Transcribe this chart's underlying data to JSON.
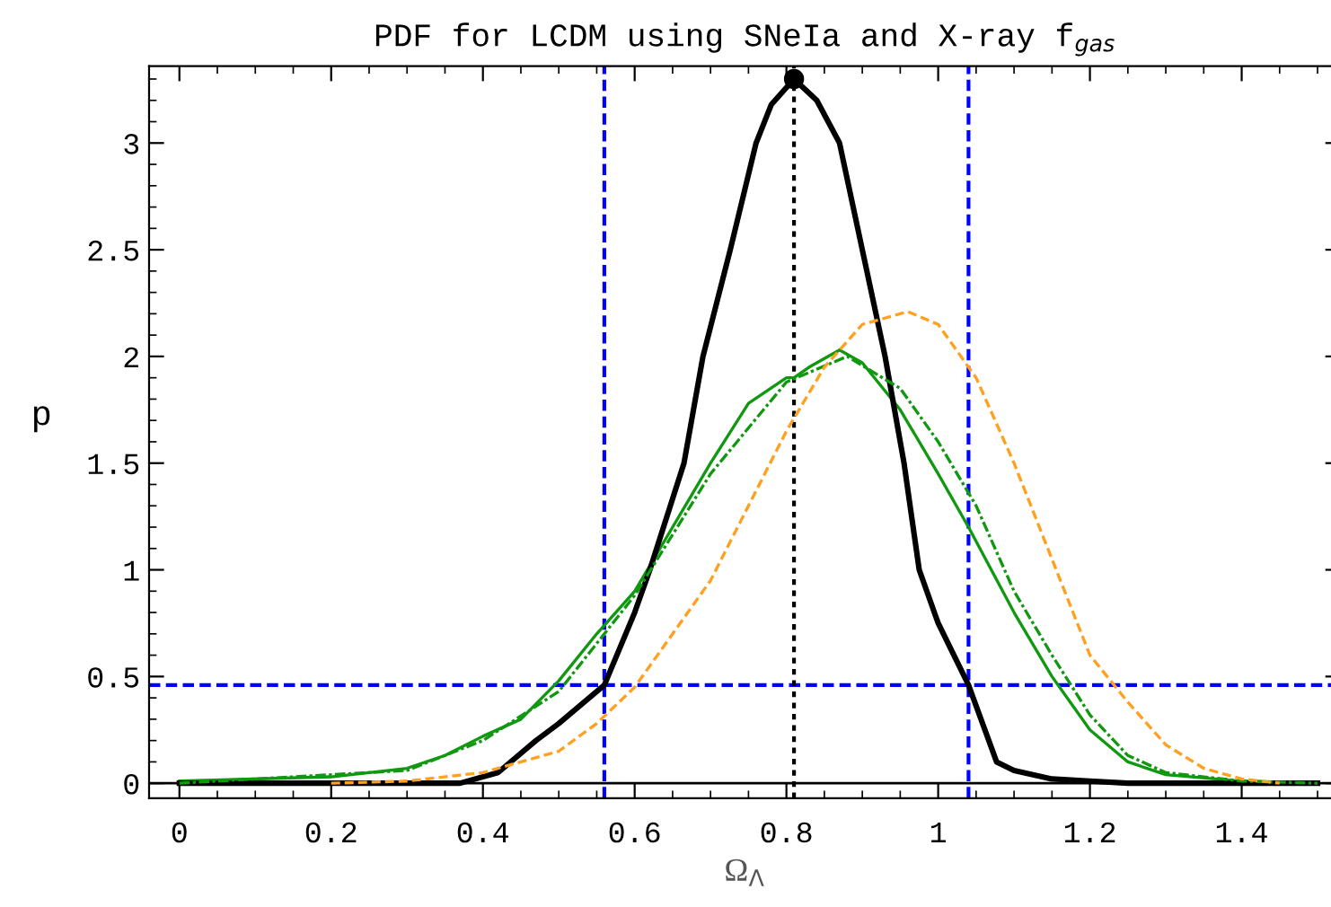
{
  "chart_data": {
    "type": "line",
    "title": "PDF for LCDM using SNeIa and X-ray f$_{gas}$",
    "xlabel": "Ω$_{Λ}$",
    "ylabel": "p",
    "xlim": [
      -0.04,
      1.53
    ],
    "ylim": [
      -0.07,
      3.36
    ],
    "xticks": [
      0,
      0.2,
      0.4,
      0.6,
      0.8,
      1,
      1.2,
      1.4
    ],
    "yticks": [
      0,
      0.5,
      1,
      1.5,
      2,
      2.5,
      3
    ],
    "grid": false,
    "legend": false,
    "series": [
      {
        "color": "#109910",
        "line_style": "solid",
        "x": [
          0,
          0.2,
          0.3,
          0.35,
          0.4,
          0.45,
          0.5,
          0.55,
          0.6,
          0.65,
          0.7,
          0.75,
          0.8,
          0.81,
          0.83,
          0.87,
          0.9,
          0.95,
          1.0,
          1.04,
          1.1,
          1.15,
          1.2,
          1.25,
          1.3,
          1.4,
          1.5
        ],
        "values": [
          0.01,
          0.03,
          0.07,
          0.13,
          0.22,
          0.3,
          0.48,
          0.7,
          0.9,
          1.2,
          1.5,
          1.78,
          1.9,
          1.9,
          1.95,
          2.03,
          1.97,
          1.75,
          1.45,
          1.2,
          0.8,
          0.5,
          0.25,
          0.1,
          0.04,
          0.01,
          0
        ]
      },
      {
        "color": "#109910",
        "line_style": "dashdot",
        "x": [
          0,
          0.3,
          0.4,
          0.5,
          0.6,
          0.7,
          0.8,
          0.88,
          0.95,
          1.0,
          1.05,
          1.1,
          1.15,
          1.2,
          1.25,
          1.3,
          1.4,
          1.5
        ],
        "values": [
          0,
          0.06,
          0.2,
          0.43,
          0.88,
          1.45,
          1.88,
          2.0,
          1.85,
          1.6,
          1.3,
          0.9,
          0.6,
          0.32,
          0.13,
          0.05,
          0.01,
          0
        ]
      },
      {
        "color": "#ffa020",
        "line_style": "dashed",
        "x": [
          0.2,
          0.3,
          0.4,
          0.5,
          0.55,
          0.6,
          0.7,
          0.75,
          0.8,
          0.85,
          0.9,
          0.96,
          1.0,
          1.05,
          1.1,
          1.15,
          1.2,
          1.25,
          1.3,
          1.35,
          1.4,
          1.45
        ],
        "values": [
          0,
          0.01,
          0.05,
          0.15,
          0.28,
          0.45,
          0.95,
          1.3,
          1.65,
          1.95,
          2.15,
          2.21,
          2.15,
          1.9,
          1.5,
          1.05,
          0.6,
          0.38,
          0.18,
          0.07,
          0.02,
          0
        ]
      },
      {
        "color": "#000000",
        "line_style": "solid",
        "x": [
          0,
          0.37,
          0.42,
          0.47,
          0.5,
          0.56,
          0.6,
          0.62,
          0.665,
          0.69,
          0.726,
          0.76,
          0.78,
          0.81,
          0.84,
          0.87,
          0.9,
          0.93,
          0.955,
          0.975,
          1.0,
          1.04,
          1.077,
          1.1,
          1.15,
          1.2,
          1.25,
          1.5
        ],
        "values": [
          0,
          0,
          0.05,
          0.2,
          0.28,
          0.46,
          0.8,
          1.0,
          1.5,
          2.0,
          2.5,
          3.0,
          3.18,
          3.3,
          3.2,
          3.0,
          2.5,
          2.0,
          1.5,
          1.0,
          0.75,
          0.46,
          0.1,
          0.06,
          0.02,
          0.01,
          0,
          0
        ]
      },
      {
        "type": "scatter",
        "color": "#000000",
        "marker": "circle",
        "x": [
          0.81
        ],
        "values": [
          3.3
        ]
      }
    ],
    "ref_lines": [
      {
        "axis": "y",
        "value": 0,
        "color": "#000000",
        "line_style": "solid"
      },
      {
        "axis": "x",
        "value": 0.56,
        "color": "#0000ff",
        "line_style": "dashed"
      },
      {
        "axis": "x",
        "value": 1.04,
        "color": "#0000ff",
        "line_style": "dashed"
      },
      {
        "axis": "y",
        "value": 0.46,
        "color": "#0000ff",
        "line_style": "dashed"
      },
      {
        "axis": "x",
        "value": 0.81,
        "color": "#000000",
        "line_style": "dotted"
      }
    ]
  }
}
